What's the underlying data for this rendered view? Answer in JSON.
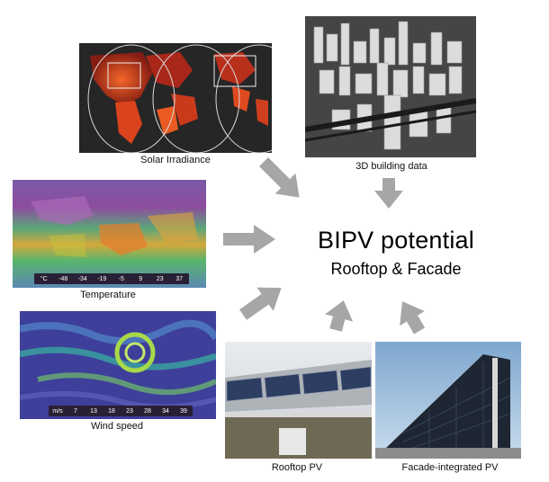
{
  "center": {
    "title": "BIPV potential",
    "subtitle": "Rooftop & Facade"
  },
  "panels": {
    "solar": {
      "caption": "Solar Irradiance"
    },
    "building": {
      "caption": "3D building data"
    },
    "temperature": {
      "caption": "Temperature",
      "legend": [
        "°C",
        "-48",
        "-34",
        "-19",
        "-5",
        "9",
        "23",
        "37"
      ]
    },
    "wind": {
      "caption": "Wind speed",
      "legend": [
        "m/s",
        "7",
        "13",
        "18",
        "23",
        "28",
        "34",
        "39"
      ]
    },
    "rooftop": {
      "caption": "Rooftop PV"
    },
    "facade": {
      "caption": "Facade-integrated PV"
    }
  },
  "colors": {
    "arrow": "#a6a6a6",
    "solar_hot": "#e3401c",
    "map_background": "#2b2b2b",
    "temp_cold": "#8a3fa0",
    "temp_warm": "#e2a33a",
    "wind_base": "#3e3f9a",
    "wind_fast": "#a7d94a"
  }
}
